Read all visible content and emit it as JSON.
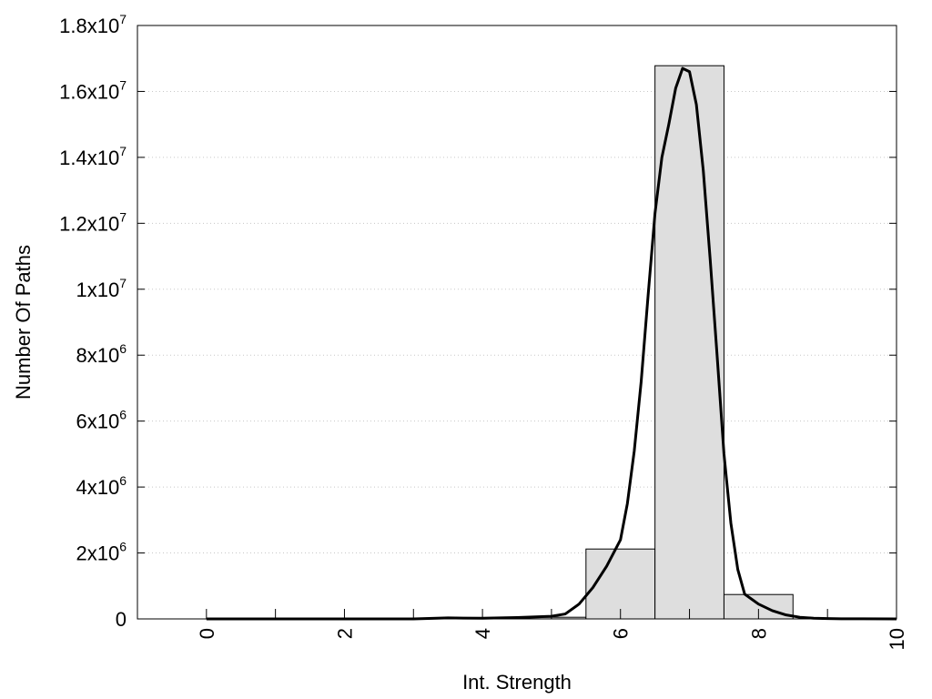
{
  "chart_data": {
    "type": "bar",
    "title": "",
    "xlabel": "Int. Strength",
    "ylabel": "Number Of Paths",
    "xlim": [
      -1,
      10
    ],
    "ylim": [
      0,
      18000000
    ],
    "grid": {
      "x": false,
      "y": true
    },
    "legend": "none",
    "colors": {
      "bar_fill": "#dedede",
      "bar_stroke": "#000000",
      "curve": "#000000",
      "grid": "#c8c8c8"
    },
    "x_ticks": [
      {
        "value": 0,
        "label": "0"
      },
      {
        "value": 2,
        "label": "2"
      },
      {
        "value": 4,
        "label": "4"
      },
      {
        "value": 6,
        "label": "6"
      },
      {
        "value": 8,
        "label": "8"
      },
      {
        "value": 10,
        "label": "10"
      }
    ],
    "x_minor_ticks": [
      1,
      3,
      5,
      7,
      9
    ],
    "y_ticks": [
      {
        "value": 0,
        "mant": "0",
        "exp": ""
      },
      {
        "value": 2000000,
        "mant": "2x10",
        "exp": "6"
      },
      {
        "value": 4000000,
        "mant": "4x10",
        "exp": "6"
      },
      {
        "value": 6000000,
        "mant": "6x10",
        "exp": "6"
      },
      {
        "value": 8000000,
        "mant": "8x10",
        "exp": "6"
      },
      {
        "value": 10000000,
        "mant": "1x10",
        "exp": "7"
      },
      {
        "value": 12000000,
        "mant": "1.2x10",
        "exp": "7"
      },
      {
        "value": 14000000,
        "mant": "1.4x10",
        "exp": "7"
      },
      {
        "value": 16000000,
        "mant": "1.6x10",
        "exp": "7"
      },
      {
        "value": 18000000,
        "mant": "1.8x10",
        "exp": "7"
      }
    ],
    "bars": [
      {
        "x": 0,
        "value": 0
      },
      {
        "x": 1,
        "value": 0
      },
      {
        "x": 2,
        "value": 0
      },
      {
        "x": 3,
        "value": 0
      },
      {
        "x": 4,
        "value": 10000
      },
      {
        "x": 5,
        "value": 50000
      },
      {
        "x": 6,
        "value": 2120000
      },
      {
        "x": 7,
        "value": 16780000
      },
      {
        "x": 8,
        "value": 740000
      },
      {
        "x": 9,
        "value": 0
      },
      {
        "x": 10,
        "value": 0
      }
    ],
    "bar_width": 1,
    "curve": {
      "x": [
        0,
        0.5,
        1,
        1.5,
        2,
        2.5,
        3,
        3.5,
        4,
        4.5,
        5,
        5.2,
        5.4,
        5.6,
        5.8,
        6,
        6.1,
        6.2,
        6.3,
        6.4,
        6.5,
        6.6,
        6.7,
        6.8,
        6.9,
        7,
        7.1,
        7.2,
        7.3,
        7.4,
        7.5,
        7.6,
        7.7,
        7.8,
        7.9,
        8,
        8.2,
        8.4,
        8.6,
        8.8,
        9,
        9.2,
        9.5,
        10
      ],
      "y": [
        0,
        0,
        0,
        0,
        0,
        0,
        0,
        30000,
        20000,
        40000,
        80000,
        150000,
        450000,
        950000,
        1600000,
        2400000,
        3500000,
        5100000,
        7200000,
        9800000,
        12300000,
        14000000,
        15000000,
        16100000,
        16700000,
        16600000,
        15600000,
        13600000,
        10900000,
        8000000,
        5000000,
        2900000,
        1500000,
        750000,
        600000,
        450000,
        250000,
        120000,
        50000,
        20000,
        10000,
        5000,
        2000,
        0
      ]
    }
  }
}
